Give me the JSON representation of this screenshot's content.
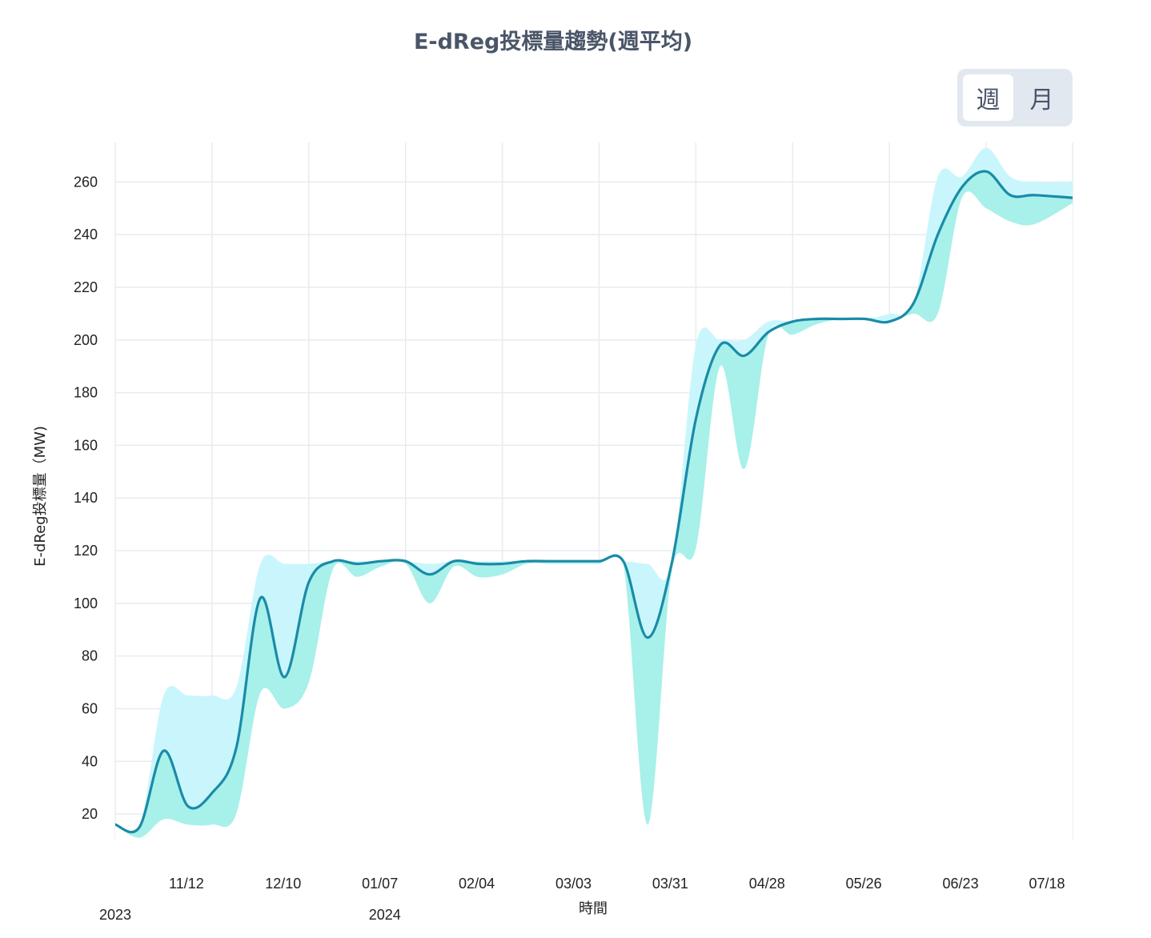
{
  "title": "E-dReg投標量趨勢(週平均)",
  "toggle": {
    "week_label": "週",
    "month_label": "月",
    "active": "week"
  },
  "chart_data": {
    "type": "line",
    "title": "E-dReg投標量趨勢(週平均)",
    "xlabel": "時間",
    "ylabel": "E-dReg投標量（MW)",
    "ylim": [
      10,
      275
    ],
    "yticks": [
      20,
      40,
      60,
      80,
      100,
      120,
      140,
      160,
      180,
      200,
      220,
      240,
      260
    ],
    "xlim": [
      "2023-10-15",
      "2024-07-18"
    ],
    "xticks": [
      {
        "date": "2023-11-12",
        "label": "11/12"
      },
      {
        "date": "2023-12-10",
        "label": "12/10"
      },
      {
        "date": "2024-01-07",
        "label": "01/07"
      },
      {
        "date": "2024-02-04",
        "label": "02/04"
      },
      {
        "date": "2024-03-03",
        "label": "03/03"
      },
      {
        "date": "2024-03-31",
        "label": "03/31"
      },
      {
        "date": "2024-04-28",
        "label": "04/28"
      },
      {
        "date": "2024-05-26",
        "label": "05/26"
      },
      {
        "date": "2024-06-23",
        "label": "06/23"
      },
      {
        "date": "2024-07-18",
        "label": "07/18"
      }
    ],
    "year_labels": [
      {
        "date": "2023-10-15",
        "label": "2023"
      },
      {
        "date": "2024-01-01",
        "label": "2024"
      }
    ],
    "grid": true,
    "colors": {
      "line": "#1a8ba8",
      "band_upper": "#c9f6fc",
      "band_lower": "#a8f0ea",
      "grid": "#e8ecef"
    },
    "series": [
      {
        "x": [
          "2023-10-15",
          "2023-10-22",
          "2023-10-29",
          "2023-11-05",
          "2023-11-12",
          "2023-11-19",
          "2023-11-26",
          "2023-12-03",
          "2023-12-10",
          "2023-12-17",
          "2023-12-24",
          "2023-12-31",
          "2024-01-07",
          "2024-01-14",
          "2024-01-21",
          "2024-01-28",
          "2024-02-04",
          "2024-02-11",
          "2024-02-18",
          "2024-02-25",
          "2024-03-03",
          "2024-03-10",
          "2024-03-17",
          "2024-03-24",
          "2024-03-31",
          "2024-04-07",
          "2024-04-14",
          "2024-04-21",
          "2024-04-28",
          "2024-05-05",
          "2024-05-12",
          "2024-05-19",
          "2024-05-26",
          "2024-06-02",
          "2024-06-09",
          "2024-06-16",
          "2024-06-23",
          "2024-06-30",
          "2024-07-07",
          "2024-07-18"
        ],
        "values": [
          16,
          15,
          44,
          23,
          28,
          45,
          102,
          72,
          108,
          116,
          115,
          116,
          116,
          111,
          116,
          115,
          115,
          116,
          116,
          116,
          116,
          116,
          87,
          115,
          170,
          198,
          194,
          203,
          207,
          208,
          208,
          208,
          207,
          214,
          240,
          258,
          264,
          255,
          255,
          254
        ],
        "upper": [
          16,
          15,
          65,
          65,
          65,
          68,
          115,
          115,
          115,
          116,
          116,
          116,
          116,
          115,
          116,
          116,
          116,
          116,
          116,
          116,
          116,
          116,
          115,
          115,
          198,
          200,
          200,
          207,
          207,
          208,
          208,
          208,
          210,
          214,
          262,
          262,
          273,
          262,
          260,
          260
        ],
        "lower": [
          16,
          11,
          18,
          16,
          16,
          20,
          66,
          60,
          70,
          113,
          110,
          114,
          115,
          100,
          114,
          110,
          111,
          115,
          115,
          115,
          115,
          115,
          16,
          112,
          121,
          190,
          151,
          202,
          202,
          206,
          208,
          208,
          207,
          210,
          210,
          254,
          250,
          245,
          244,
          252
        ]
      }
    ]
  }
}
